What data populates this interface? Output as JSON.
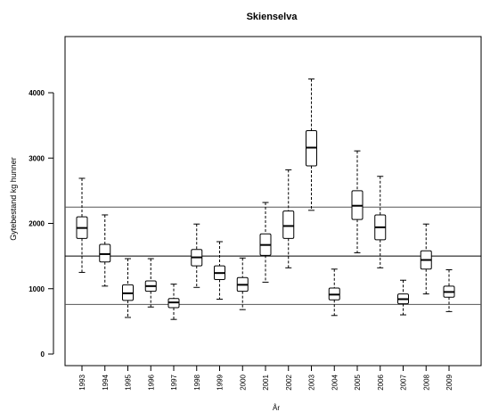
{
  "chart_data": {
    "type": "boxplot",
    "title": "Skienselva",
    "xlabel": "År",
    "ylabel": "Gytebestand kg hunner",
    "ylim": [
      -200,
      4700
    ],
    "y_ticks": [
      0,
      1000,
      2000,
      3000,
      4000
    ],
    "grid": false,
    "categories": [
      "1993",
      "1994",
      "1995",
      "1996",
      "1997",
      "1998",
      "1999",
      "2000",
      "2001",
      "2002",
      "2003",
      "2004",
      "2005",
      "2006",
      "2007",
      "2008",
      "2009"
    ],
    "boxes": [
      {
        "category": "1993",
        "whisker_low": 1250,
        "q1": 1770,
        "median": 1930,
        "q3": 2100,
        "whisker_high": 2690
      },
      {
        "category": "1994",
        "whisker_low": 1040,
        "q1": 1410,
        "median": 1530,
        "q3": 1680,
        "whisker_high": 2130
      },
      {
        "category": "1995",
        "whisker_low": 560,
        "q1": 820,
        "median": 930,
        "q3": 1060,
        "whisker_high": 1460
      },
      {
        "category": "1996",
        "whisker_low": 720,
        "q1": 960,
        "median": 1040,
        "q3": 1120,
        "whisker_high": 1460
      },
      {
        "category": "1997",
        "whisker_low": 530,
        "q1": 710,
        "median": 790,
        "q3": 850,
        "whisker_high": 1070
      },
      {
        "category": "1998",
        "whisker_low": 1020,
        "q1": 1350,
        "median": 1480,
        "q3": 1600,
        "whisker_high": 1990
      },
      {
        "category": "1999",
        "whisker_low": 840,
        "q1": 1140,
        "median": 1240,
        "q3": 1350,
        "whisker_high": 1720
      },
      {
        "category": "2000",
        "whisker_low": 680,
        "q1": 960,
        "median": 1060,
        "q3": 1170,
        "whisker_high": 1470
      },
      {
        "category": "2001",
        "whisker_low": 1100,
        "q1": 1510,
        "median": 1670,
        "q3": 1840,
        "whisker_high": 2320
      },
      {
        "category": "2002",
        "whisker_low": 1320,
        "q1": 1770,
        "median": 1960,
        "q3": 2190,
        "whisker_high": 2820
      },
      {
        "category": "2003",
        "whisker_low": 2200,
        "q1": 2880,
        "median": 3160,
        "q3": 3420,
        "whisker_high": 4210
      },
      {
        "category": "2004",
        "whisker_low": 590,
        "q1": 830,
        "median": 910,
        "q3": 1010,
        "whisker_high": 1300
      },
      {
        "category": "2005",
        "whisker_low": 1550,
        "q1": 2060,
        "median": 2270,
        "q3": 2500,
        "whisker_high": 3110
      },
      {
        "category": "2006",
        "whisker_low": 1320,
        "q1": 1750,
        "median": 1940,
        "q3": 2130,
        "whisker_high": 2720
      },
      {
        "category": "2007",
        "whisker_low": 600,
        "q1": 770,
        "median": 840,
        "q3": 920,
        "whisker_high": 1130
      },
      {
        "category": "2008",
        "whisker_low": 920,
        "q1": 1300,
        "median": 1440,
        "q3": 1580,
        "whisker_high": 1990
      },
      {
        "category": "2009",
        "whisker_low": 650,
        "q1": 870,
        "median": 950,
        "q3": 1040,
        "whisker_high": 1290
      }
    ],
    "reference_lines": [
      2250,
      1500,
      760
    ],
    "colors": {
      "box": "#000000",
      "reference_outer": "#555555",
      "reference_inner": "#000000"
    }
  }
}
